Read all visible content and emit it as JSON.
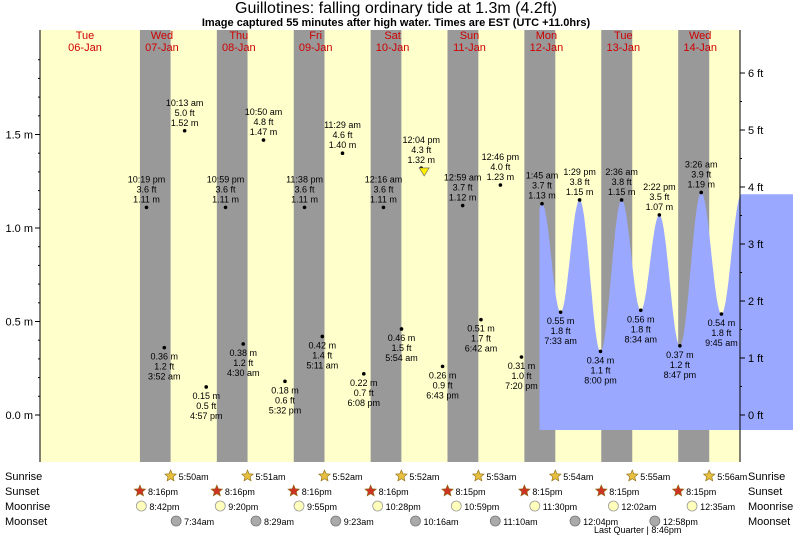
{
  "title": "Guillotines: falling  ordinary tide at 1.3m (4.2ft)",
  "subtitle": "Image captured 55 minutes after high water. Times are EST (UTC +11.0hrs)",
  "chart_data": {
    "type": "area",
    "y_axis_left": {
      "unit": "m",
      "range": [
        -0.17,
        1.98
      ],
      "ticks": [
        "0.0 m",
        "0.5 m",
        "1.0 m",
        "1.5 m"
      ],
      "tick_values": [
        0.0,
        0.5,
        1.0,
        1.5
      ]
    },
    "y_axis_right": {
      "unit": "ft",
      "ticks": [
        "0 ft",
        "1 ft",
        "2 ft",
        "3 ft",
        "4 ft",
        "5 ft",
        "6 ft"
      ],
      "tick_values": [
        0,
        1,
        2,
        3,
        4,
        5,
        6
      ]
    },
    "x_range_days": [
      6.0,
      14.0
    ],
    "days": [
      {
        "name": "Tue",
        "date": "06-Jan"
      },
      {
        "name": "Wed",
        "date": "07-Jan"
      },
      {
        "name": "Thu",
        "date": "08-Jan"
      },
      {
        "name": "Fri",
        "date": "09-Jan"
      },
      {
        "name": "Sat",
        "date": "10-Jan"
      },
      {
        "name": "Sun",
        "date": "11-Jan"
      },
      {
        "name": "Mon",
        "date": "12-Jan"
      },
      {
        "name": "Tue",
        "date": "13-Jan"
      },
      {
        "name": "Wed",
        "date": "14-Jan"
      }
    ],
    "night_periods": [
      [
        "06-Jan 20:16",
        "07-Jan 05:50"
      ],
      [
        "07-Jan 20:16",
        "08-Jan 05:51"
      ],
      [
        "08-Jan 20:16",
        "09-Jan 05:52"
      ],
      [
        "09-Jan 20:16",
        "10-Jan 05:52"
      ],
      [
        "10-Jan 20:15",
        "11-Jan 05:53"
      ],
      [
        "11-Jan 20:15",
        "12-Jan 05:54"
      ],
      [
        "12-Jan 20:15",
        "13-Jan 05:55"
      ],
      [
        "13-Jan 20:15",
        "14-Jan 05:56"
      ]
    ],
    "tide_extremes": [
      {
        "type": "high",
        "day": "06-Jan",
        "time": "10:19 pm",
        "ft": "3.6 ft",
        "m": "1.11 m",
        "label_time": "10:19 pm",
        "label_ft": "3.6 ft",
        "label_m": "1.11 m",
        "label_pos": "above"
      },
      {
        "type": "low",
        "day": "07-Jan",
        "time": "3:52 am",
        "ft": "1.2 ft",
        "m": "0.36 m",
        "label_time": "3:52 am",
        "label_ft": "1.2 ft",
        "label_m": "0.36 m",
        "label_pos": "below"
      },
      {
        "type": "high",
        "day": "07-Jan",
        "time": "10:13 am",
        "label_time": "10:13 am",
        "label_ft": "5.0 ft",
        "label_m": "1.52 m",
        "label_pos": "above"
      },
      {
        "type": "low",
        "day": "07-Jan",
        "time": "4:57 pm",
        "label_time": "4:57 pm",
        "label_ft": "0.5 ft",
        "label_m": "0.15 m",
        "label_pos": "below"
      },
      {
        "type": "high",
        "day": "07-Jan",
        "time": "10:59 pm",
        "label_time": "10:59 pm",
        "label_ft": "3.6 ft",
        "label_m": "1.11 m",
        "label_pos": "above"
      },
      {
        "type": "low",
        "day": "08-Jan",
        "time": "4:30 am",
        "label_time": "4:30 am",
        "label_ft": "1.2 ft",
        "label_m": "0.38 m",
        "label_pos": "below"
      },
      {
        "type": "high",
        "day": "08-Jan",
        "time": "10:50 am",
        "label_time": "10:50 am",
        "label_ft": "4.8 ft",
        "label_m": "1.47 m",
        "label_pos": "above"
      },
      {
        "type": "low",
        "day": "08-Jan",
        "time": "5:32 pm",
        "label_time": "5:32 pm",
        "label_ft": "0.6 ft",
        "label_m": "0.18 m",
        "label_pos": "below"
      },
      {
        "type": "high",
        "day": "08-Jan",
        "time": "11:38 pm",
        "label_time": "11:38 pm",
        "label_ft": "3.6 ft",
        "label_m": "1.11 m",
        "label_pos": "above"
      },
      {
        "type": "low",
        "day": "09-Jan",
        "time": "5:11 am",
        "label_time": "5:11 am",
        "label_ft": "1.4 ft",
        "label_m": "0.42 m",
        "label_pos": "below"
      },
      {
        "type": "high",
        "day": "09-Jan",
        "time": "11:29 am",
        "label_time": "11:29 am",
        "label_ft": "4.6 ft",
        "label_m": "1.40 m",
        "label_pos": "above"
      },
      {
        "type": "low",
        "day": "09-Jan",
        "time": "6:08 pm",
        "label_time": "6:08 pm",
        "label_ft": "0.7 ft",
        "label_m": "0.22 m",
        "label_pos": "below"
      },
      {
        "type": "high",
        "day": "10-Jan",
        "time": "12:16 am",
        "label_time": "12:16 am",
        "label_ft": "3.6 ft",
        "label_m": "1.11 m",
        "label_pos": "above"
      },
      {
        "type": "low",
        "day": "10-Jan",
        "time": "5:54 am",
        "label_time": "5:54 am",
        "label_ft": "1.5 ft",
        "label_m": "0.46 m",
        "label_pos": "below"
      },
      {
        "type": "high",
        "day": "10-Jan",
        "time": "12:04 pm",
        "label_time": "12:04 pm",
        "label_ft": "4.3 ft",
        "label_m": "1.32 m",
        "label_pos": "above"
      },
      {
        "type": "low",
        "day": "10-Jan",
        "time": "6:43 pm",
        "label_time": "6:43 pm",
        "label_ft": "0.9 ft",
        "label_m": "0.26 m",
        "label_pos": "below"
      },
      {
        "type": "high",
        "day": "11-Jan",
        "time": "12:59 am",
        "label_time": "12:59 am",
        "label_ft": "3.7 ft",
        "label_m": "1.12 m",
        "label_pos": "above"
      },
      {
        "type": "low",
        "day": "11-Jan",
        "time": "6:42 am",
        "label_time": "6:42 am",
        "label_ft": "1.7 ft",
        "label_m": "0.51 m",
        "label_pos": "below"
      },
      {
        "type": "high",
        "day": "11-Jan",
        "time": "12:46 pm",
        "label_time": "12:46 pm",
        "label_ft": "4.0 ft",
        "label_m": "1.23 m",
        "label_pos": "above"
      },
      {
        "type": "low",
        "day": "11-Jan",
        "time": "7:20 pm",
        "label_time": "7:20 pm",
        "label_ft": "1.0 ft",
        "label_m": "0.31 m",
        "label_pos": "below"
      },
      {
        "type": "high",
        "day": "12-Jan",
        "time": "1:45 am",
        "label_time": "1:45 am",
        "label_ft": "3.7 ft",
        "label_m": "1.13 m",
        "label_pos": "above"
      },
      {
        "type": "low",
        "day": "12-Jan",
        "time": "7:33 am",
        "label_time": "7:33 am",
        "label_ft": "1.8 ft",
        "label_m": "0.55 m",
        "label_pos": "below"
      },
      {
        "type": "high",
        "day": "12-Jan",
        "time": "1:29 pm",
        "label_time": "1:29 pm",
        "label_ft": "3.8 ft",
        "label_m": "1.15 m",
        "label_pos": "above"
      },
      {
        "type": "low",
        "day": "12-Jan",
        "time": "8:00 pm",
        "label_time": "8:00 pm",
        "label_ft": "1.1 ft",
        "label_m": "0.34 m",
        "label_pos": "below"
      },
      {
        "type": "high",
        "day": "13-Jan",
        "time": "2:36 am",
        "label_time": "2:36 am",
        "label_ft": "3.8 ft",
        "label_m": "1.15 m",
        "label_pos": "above"
      },
      {
        "type": "low",
        "day": "13-Jan",
        "time": "8:34 am",
        "label_time": "8:34 am",
        "label_ft": "1.8 ft",
        "label_m": "0.56 m",
        "label_pos": "below"
      },
      {
        "type": "high",
        "day": "13-Jan",
        "time": "2:22 pm",
        "label_time": "2:22 pm",
        "label_ft": "3.5 ft",
        "label_m": "1.07 m",
        "label_pos": "above"
      },
      {
        "type": "low",
        "day": "13-Jan",
        "time": "8:47 pm",
        "label_time": "8:47 pm",
        "label_ft": "1.2 ft",
        "label_m": "0.37 m",
        "label_pos": "below"
      },
      {
        "type": "high",
        "day": "14-Jan",
        "time": "3:26 am",
        "label_time": "3:26 am",
        "label_ft": "3.9 ft",
        "label_m": "1.19 m",
        "label_pos": "above"
      },
      {
        "type": "low",
        "day": "14-Jan",
        "time": "9:45 am",
        "label_time": "9:45 am",
        "label_ft": "1.8 ft",
        "label_m": "0.54 m",
        "label_pos": "below"
      }
    ],
    "current": {
      "day": "10-Jan",
      "time": "12:59 pm",
      "m": 1.3
    },
    "astro_row_labels": [
      "Sunrise",
      "Sunset",
      "Moonrise",
      "Moonset"
    ],
    "sunrise": [
      {
        "day": "07-Jan",
        "time": "5:50am"
      },
      {
        "day": "08-Jan",
        "time": "5:51am"
      },
      {
        "day": "09-Jan",
        "time": "5:52am"
      },
      {
        "day": "10-Jan",
        "time": "5:52am"
      },
      {
        "day": "11-Jan",
        "time": "5:53am"
      },
      {
        "day": "12-Jan",
        "time": "5:54am"
      },
      {
        "day": "13-Jan",
        "time": "5:55am"
      },
      {
        "day": "14-Jan",
        "time": "5:56am"
      }
    ],
    "sunset": [
      {
        "day": "06-Jan",
        "time": "8:16pm"
      },
      {
        "day": "07-Jan",
        "time": "8:16pm"
      },
      {
        "day": "08-Jan",
        "time": "8:16pm"
      },
      {
        "day": "09-Jan",
        "time": "8:16pm"
      },
      {
        "day": "10-Jan",
        "time": "8:15pm"
      },
      {
        "day": "11-Jan",
        "time": "8:15pm"
      },
      {
        "day": "12-Jan",
        "time": "8:15pm"
      },
      {
        "day": "13-Jan",
        "time": "8:15pm"
      }
    ],
    "moonrise": [
      {
        "day": "06-Jan",
        "time": "8:42pm"
      },
      {
        "day": "07-Jan",
        "time": "9:20pm"
      },
      {
        "day": "08-Jan",
        "time": "9:55pm"
      },
      {
        "day": "09-Jan",
        "time": "10:28pm"
      },
      {
        "day": "10-Jan",
        "time": "10:59pm"
      },
      {
        "day": "11-Jan",
        "time": "11:30pm"
      },
      {
        "day": "13-Jan",
        "time": "12:02am"
      },
      {
        "day": "14-Jan",
        "time": "12:35am"
      }
    ],
    "moonset": [
      {
        "day": "07-Jan",
        "time": "7:34am"
      },
      {
        "day": "08-Jan",
        "time": "8:29am"
      },
      {
        "day": "09-Jan",
        "time": "9:23am"
      },
      {
        "day": "10-Jan",
        "time": "10:16am"
      },
      {
        "day": "11-Jan",
        "time": "11:10am"
      },
      {
        "day": "12-Jan",
        "time": "12:04pm"
      },
      {
        "day": "13-Jan",
        "time": "12:58pm"
      }
    ],
    "moon_phase_note": "Last Quarter | 8:46pm",
    "colors": {
      "day_bg": "#ffffcc",
      "night_bg": "#999999",
      "tide_fill": "#9aa8ff",
      "day_label": "#d00000",
      "sun_star": "#e8c040",
      "sunset_star": "#cc3322",
      "moonrise": "#ffffbb",
      "moonset": "#aaaaaa"
    },
    "legend": "none",
    "grid": false
  }
}
